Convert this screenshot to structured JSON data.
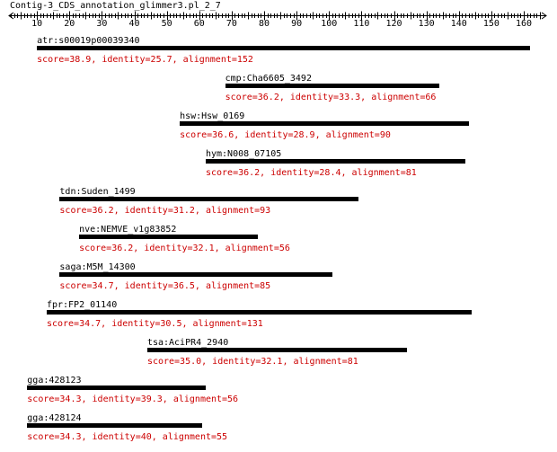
{
  "title": "Contig-3_CDS_annotation_glimmer3.pl_2_7",
  "ruler": {
    "min": 0,
    "max": 165,
    "tick_labels": [
      "10",
      "20",
      "30",
      "40",
      "50",
      "60",
      "70",
      "80",
      "90",
      "100",
      "110",
      "120",
      "130",
      "140",
      "150",
      "160"
    ],
    "tick_values": [
      10,
      20,
      30,
      40,
      50,
      60,
      70,
      80,
      90,
      100,
      110,
      120,
      130,
      140,
      150,
      160
    ]
  },
  "hits": [
    {
      "name": "atr:s00019p00039340",
      "start": 10,
      "end": 162,
      "score": "38.9",
      "identity": "25.7",
      "alignment": "152",
      "stats": "score=38.9, identity=25.7, alignment=152"
    },
    {
      "name": "cmp:Cha6605_3492",
      "start": 68,
      "end": 134,
      "score": "36.2",
      "identity": "33.3",
      "alignment": "66",
      "stats": "score=36.2, identity=33.3, alignment=66"
    },
    {
      "name": "hsw:Hsw_0169",
      "start": 54,
      "end": 143,
      "score": "36.6",
      "identity": "28.9",
      "alignment": "90",
      "stats": "score=36.6, identity=28.9, alignment=90"
    },
    {
      "name": "hym:N008_07105",
      "start": 62,
      "end": 142,
      "score": "36.2",
      "identity": "28.4",
      "alignment": "81",
      "stats": "score=36.2, identity=28.4, alignment=81"
    },
    {
      "name": "tdn:Suden_1499",
      "start": 17,
      "end": 109,
      "score": "36.2",
      "identity": "31.2",
      "alignment": "93",
      "stats": "score=36.2, identity=31.2, alignment=93"
    },
    {
      "name": "nve:NEMVE_v1g83852",
      "start": 23,
      "end": 78,
      "score": "36.2",
      "identity": "32.1",
      "alignment": "56",
      "stats": "score=36.2, identity=32.1, alignment=56"
    },
    {
      "name": "saga:M5M_14300",
      "start": 17,
      "end": 101,
      "score": "34.7",
      "identity": "36.5",
      "alignment": "85",
      "stats": "score=34.7, identity=36.5, alignment=85"
    },
    {
      "name": "fpr:FP2_01140",
      "start": 13,
      "end": 144,
      "score": "34.7",
      "identity": "30.5",
      "alignment": "131",
      "stats": "score=34.7, identity=30.5, alignment=131"
    },
    {
      "name": "tsa:AciPR4_2940",
      "start": 44,
      "end": 124,
      "score": "35.0",
      "identity": "32.1",
      "alignment": "81",
      "stats": "score=35.0, identity=32.1, alignment=81"
    },
    {
      "name": "gga:428123",
      "start": 7,
      "end": 62,
      "score": "34.3",
      "identity": "39.3",
      "alignment": "56",
      "stats": "score=34.3, identity=39.3, alignment=56"
    },
    {
      "name": "gga:428124",
      "start": 7,
      "end": 61,
      "score": "34.3",
      "identity": "40",
      "alignment": "55",
      "stats": "score=34.3, identity=40, alignment=55"
    }
  ]
}
